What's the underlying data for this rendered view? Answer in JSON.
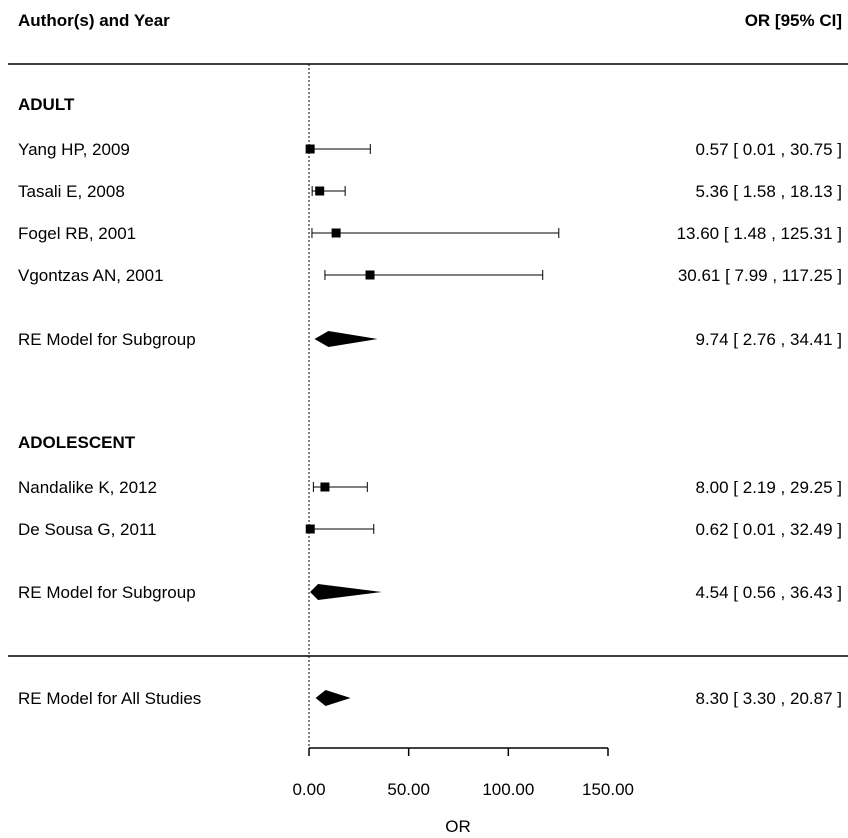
{
  "chart_data": {
    "type": "forest",
    "headers": {
      "left": "Author(s) and Year",
      "right": "OR [95% CI]"
    },
    "null_line": 0,
    "xaxis": {
      "ticks": [
        0,
        50,
        100,
        150
      ],
      "tick_labels": [
        "0.00",
        "50.00",
        "100.00",
        "150.00"
      ],
      "xlabel": "OR",
      "xlim": [
        0,
        150
      ]
    },
    "groups": [
      {
        "name": "ADULT",
        "studies": [
          {
            "label": "Yang HP, 2009",
            "or": 0.57,
            "lo": 0.01,
            "hi": 30.75,
            "ci_text": "0.57 [ 0.01 ,  30.75 ]"
          },
          {
            "label": "Tasali E, 2008",
            "or": 5.36,
            "lo": 1.58,
            "hi": 18.13,
            "ci_text": "5.36 [ 1.58 ,  18.13 ]"
          },
          {
            "label": "Fogel RB, 2001",
            "or": 13.6,
            "lo": 1.48,
            "hi": 125.31,
            "ci_text": "13.60 [ 1.48 , 125.31 ]"
          },
          {
            "label": "Vgontzas AN, 2001",
            "or": 30.61,
            "lo": 7.99,
            "hi": 117.25,
            "ci_text": "30.61 [ 7.99 , 117.25 ]"
          }
        ],
        "summary": {
          "label": "RE Model for Subgroup",
          "or": 9.74,
          "lo": 2.76,
          "hi": 34.41,
          "ci_text": "9.74 [ 2.76 ,  34.41 ]"
        }
      },
      {
        "name": "ADOLESCENT",
        "studies": [
          {
            "label": "Nandalike K, 2012",
            "or": 8.0,
            "lo": 2.19,
            "hi": 29.25,
            "ci_text": "8.00 [ 2.19 ,  29.25 ]"
          },
          {
            "label": "De Sousa G, 2011",
            "or": 0.62,
            "lo": 0.01,
            "hi": 32.49,
            "ci_text": "0.62 [ 0.01 ,  32.49 ]"
          }
        ],
        "summary": {
          "label": "RE Model for Subgroup",
          "or": 4.54,
          "lo": 0.56,
          "hi": 36.43,
          "ci_text": "4.54 [ 0.56 ,  36.43 ]"
        }
      }
    ],
    "overall": {
      "label": "RE Model for All Studies",
      "or": 8.3,
      "lo": 3.3,
      "hi": 20.87,
      "ci_text": "8.30 [ 3.30 ,  20.87 ]"
    }
  }
}
